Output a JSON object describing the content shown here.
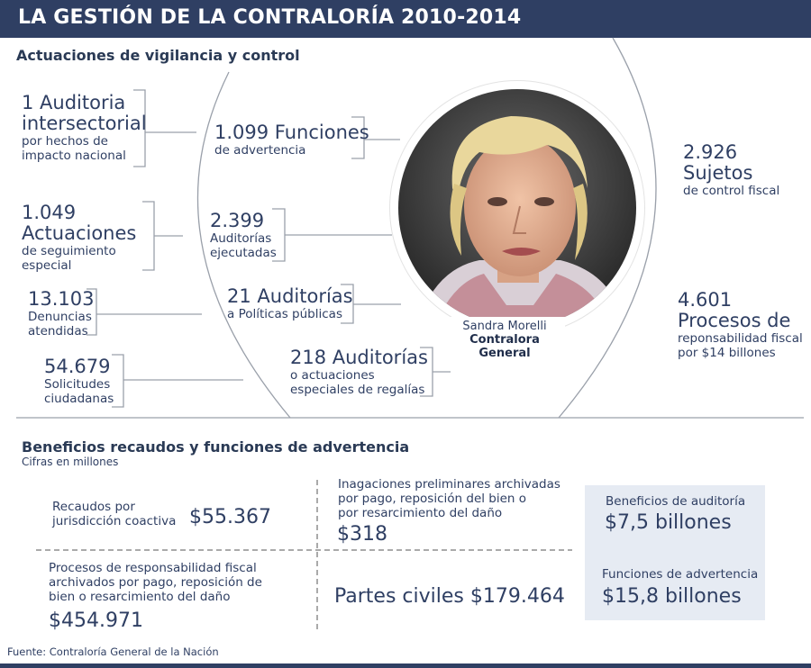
{
  "header": {
    "title": "LA GESTIÓN DE LA CONTRALORÍA 2010-2014"
  },
  "vigilancia": {
    "title": "Actuaciones de vigilancia y control",
    "left": [
      {
        "big": [
          "1 Auditoria",
          "intersectorial"
        ],
        "small": [
          "por hechos de",
          "impacto nacional"
        ]
      },
      {
        "big": [
          "1.049",
          "Actuaciones"
        ],
        "small": [
          "de seguimiento",
          "especial"
        ]
      },
      {
        "big": [
          "13.103"
        ],
        "small": [
          "Denuncias",
          "atendidas"
        ]
      },
      {
        "big": [
          "54.679"
        ],
        "small": [
          "Solicitudes",
          "ciudadanas"
        ]
      }
    ],
    "center": [
      {
        "big": [
          "1.099 Funciones"
        ],
        "small": [
          "de advertencia"
        ]
      },
      {
        "big": [
          "2.399"
        ],
        "small": [
          "Auditorías",
          "ejecutadas"
        ]
      },
      {
        "big": [
          "21 Auditorías"
        ],
        "small": [
          "a Políticas públicas"
        ]
      },
      {
        "big": [
          "218 Auditorías"
        ],
        "small": [
          "o actuaciones",
          "especiales de regalías"
        ]
      }
    ],
    "right": [
      {
        "big": [
          "2.926 Sujetos"
        ],
        "small": [
          "de control fiscal"
        ]
      },
      {
        "big": [
          "4.601",
          "Procesos de"
        ],
        "small": [
          "reponsabilidad fiscal",
          "por $14 billones"
        ]
      }
    ],
    "person": {
      "name": "Sandra Morelli",
      "role": "Contralora General"
    }
  },
  "beneficios": {
    "title": "Beneficios recaudos y funciones de advertencia",
    "subtitle": "Cifras en millones",
    "recaudos": {
      "label": [
        "Recaudos por",
        "jurisdicción coactiva"
      ],
      "value": "$55.367"
    },
    "indagaciones": {
      "label": [
        "Inagaciones preliminares archivadas",
        "por pago, reposición del bien o",
        "por resarcimiento del daño"
      ],
      "value": "$318"
    },
    "procesos": {
      "label": [
        "Procesos de responsabilidad fiscal",
        "archivados por pago, reposición de",
        "bien o resarcimiento del daño"
      ],
      "value": "$454.971"
    },
    "partes": {
      "label": "Partes civiles",
      "value": "$179.464"
    },
    "summary": [
      {
        "label": "Beneficios de auditoría",
        "value": "$7,5 billones"
      },
      {
        "label": "Funciones de advertencia",
        "value": "$15,8 billones"
      }
    ]
  },
  "source": "Fuente: Contraloría General de la Nación",
  "colors": {
    "navy": "#2f3f63",
    "panel": "#e6ebf3",
    "line": "#9aa0aa"
  },
  "icons": {
    "portrait": "portrait-photo"
  }
}
